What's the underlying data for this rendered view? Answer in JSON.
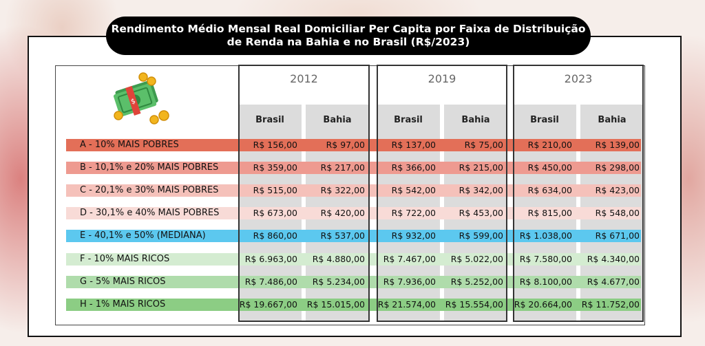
{
  "title_line1": "Rendimento Médio Mensal Real Domiciliar Per Capita por Faixa de  Distribuição",
  "title_line2": "de Renda na Bahia e no Brasil (R$/2023)",
  "chart_data": {
    "type": "table",
    "years": [
      "2012",
      "2019",
      "2023"
    ],
    "regions": [
      "Brasil",
      "Bahia"
    ],
    "rows": [
      {
        "label": "A - 10% MAIS POBRES",
        "color": "#e36f58",
        "values": [
          "R$ 156,00",
          "R$ 97,00",
          "R$ 137,00",
          "R$ 75,00",
          "R$ 210,00",
          "R$ 139,00"
        ]
      },
      {
        "label": "B - 10,1% e 20% MAIS POBRES",
        "color": "#ee9a90",
        "values": [
          "R$ 359,00",
          "R$ 217,00",
          "R$ 366,00",
          "R$ 215,00",
          "R$ 450,00",
          "R$ 298,00"
        ]
      },
      {
        "label": "C - 20,1% e 30% MAIS POBRES",
        "color": "#f5c1ba",
        "values": [
          "R$ 515,00",
          "R$ 322,00",
          "R$ 542,00",
          "R$ 342,00",
          "R$ 634,00",
          "R$ 423,00"
        ]
      },
      {
        "label": "D - 30,1% e 40% MAIS POBRES",
        "color": "#f8dbd7",
        "values": [
          "R$ 673,00",
          "R$ 420,00",
          "R$ 722,00",
          "R$ 453,00",
          "R$ 815,00",
          "R$ 548,00"
        ]
      },
      {
        "label": "E - 40,1% e 50% (MEDIANA)",
        "color": "#5cc8ef",
        "values": [
          "R$ 860,00",
          "R$ 537,00",
          "R$ 932,00",
          "R$ 599,00",
          "R$ 1.038,00",
          "R$ 671,00"
        ]
      },
      {
        "label": "F - 10% MAIS RICOS",
        "color": "#d4ecd1",
        "values": [
          "R$ 6.963,00",
          "R$ 4.880,00",
          "R$ 7.467,00",
          "R$ 5.022,00",
          "R$ 7.580,00",
          "R$ 4.340,00"
        ]
      },
      {
        "label": "G - 5% MAIS RICOS",
        "color": "#afdcab",
        "values": [
          "R$ 7.486,00",
          "R$ 5.234,00",
          "R$ 7.936,00",
          "R$ 5.252,00",
          "R$ 8.100,00",
          "R$ 4.677,00"
        ]
      },
      {
        "label": "H - 1% MAIS RICOS",
        "color": "#8ccd84",
        "values": [
          "R$ 19.667,00",
          "R$ 15.015,00",
          "R$ 21.574,00",
          "R$ 15.554,00",
          "R$ 20.664,00",
          "R$ 11.752,00"
        ]
      }
    ]
  }
}
